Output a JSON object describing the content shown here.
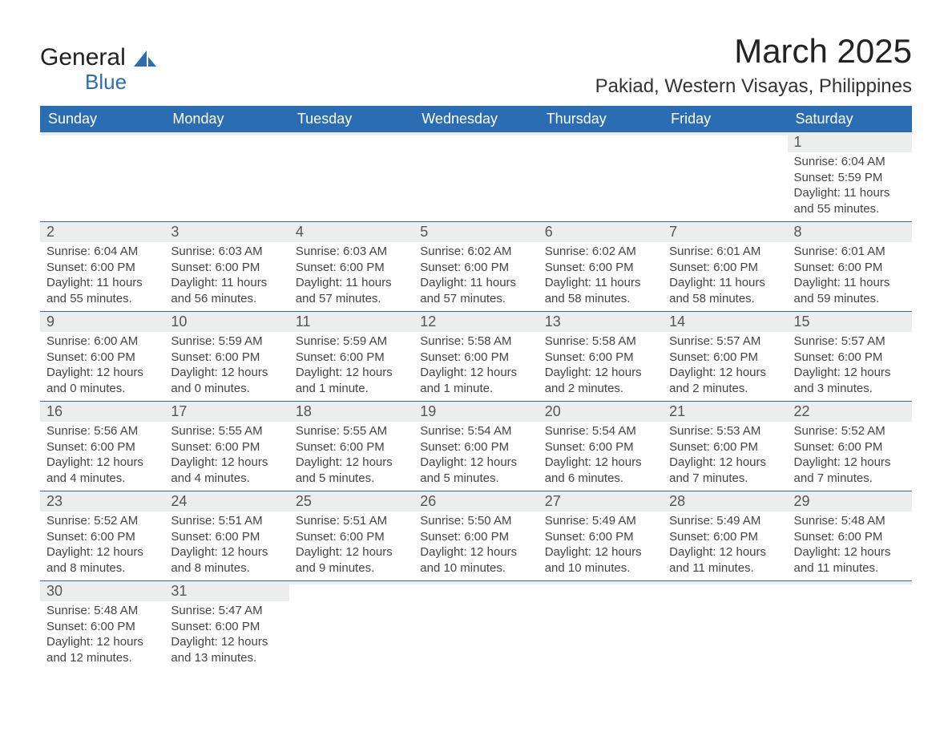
{
  "logo": {
    "text1": "General",
    "text2": "Blue",
    "icon_color": "#2a6db3"
  },
  "header": {
    "month_title": "March 2025",
    "location": "Pakiad, Western Visayas, Philippines"
  },
  "columns": [
    "Sunday",
    "Monday",
    "Tuesday",
    "Wednesday",
    "Thursday",
    "Friday",
    "Saturday"
  ],
  "colors": {
    "header_bg": "#2a6db3",
    "header_fg": "#ffffff",
    "daynum_bg": "#eceded",
    "text": "#444444",
    "rule": "#2a6db3"
  },
  "weeks": [
    [
      {
        "n": "",
        "lines": []
      },
      {
        "n": "",
        "lines": []
      },
      {
        "n": "",
        "lines": []
      },
      {
        "n": "",
        "lines": []
      },
      {
        "n": "",
        "lines": []
      },
      {
        "n": "",
        "lines": []
      },
      {
        "n": "1",
        "lines": [
          "Sunrise: 6:04 AM",
          "Sunset: 5:59 PM",
          "Daylight: 11 hours and 55 minutes."
        ]
      }
    ],
    [
      {
        "n": "2",
        "lines": [
          "Sunrise: 6:04 AM",
          "Sunset: 6:00 PM",
          "Daylight: 11 hours and 55 minutes."
        ]
      },
      {
        "n": "3",
        "lines": [
          "Sunrise: 6:03 AM",
          "Sunset: 6:00 PM",
          "Daylight: 11 hours and 56 minutes."
        ]
      },
      {
        "n": "4",
        "lines": [
          "Sunrise: 6:03 AM",
          "Sunset: 6:00 PM",
          "Daylight: 11 hours and 57 minutes."
        ]
      },
      {
        "n": "5",
        "lines": [
          "Sunrise: 6:02 AM",
          "Sunset: 6:00 PM",
          "Daylight: 11 hours and 57 minutes."
        ]
      },
      {
        "n": "6",
        "lines": [
          "Sunrise: 6:02 AM",
          "Sunset: 6:00 PM",
          "Daylight: 11 hours and 58 minutes."
        ]
      },
      {
        "n": "7",
        "lines": [
          "Sunrise: 6:01 AM",
          "Sunset: 6:00 PM",
          "Daylight: 11 hours and 58 minutes."
        ]
      },
      {
        "n": "8",
        "lines": [
          "Sunrise: 6:01 AM",
          "Sunset: 6:00 PM",
          "Daylight: 11 hours and 59 minutes."
        ]
      }
    ],
    [
      {
        "n": "9",
        "lines": [
          "Sunrise: 6:00 AM",
          "Sunset: 6:00 PM",
          "Daylight: 12 hours and 0 minutes."
        ]
      },
      {
        "n": "10",
        "lines": [
          "Sunrise: 5:59 AM",
          "Sunset: 6:00 PM",
          "Daylight: 12 hours and 0 minutes."
        ]
      },
      {
        "n": "11",
        "lines": [
          "Sunrise: 5:59 AM",
          "Sunset: 6:00 PM",
          "Daylight: 12 hours and 1 minute."
        ]
      },
      {
        "n": "12",
        "lines": [
          "Sunrise: 5:58 AM",
          "Sunset: 6:00 PM",
          "Daylight: 12 hours and 1 minute."
        ]
      },
      {
        "n": "13",
        "lines": [
          "Sunrise: 5:58 AM",
          "Sunset: 6:00 PM",
          "Daylight: 12 hours and 2 minutes."
        ]
      },
      {
        "n": "14",
        "lines": [
          "Sunrise: 5:57 AM",
          "Sunset: 6:00 PM",
          "Daylight: 12 hours and 2 minutes."
        ]
      },
      {
        "n": "15",
        "lines": [
          "Sunrise: 5:57 AM",
          "Sunset: 6:00 PM",
          "Daylight: 12 hours and 3 minutes."
        ]
      }
    ],
    [
      {
        "n": "16",
        "lines": [
          "Sunrise: 5:56 AM",
          "Sunset: 6:00 PM",
          "Daylight: 12 hours and 4 minutes."
        ]
      },
      {
        "n": "17",
        "lines": [
          "Sunrise: 5:55 AM",
          "Sunset: 6:00 PM",
          "Daylight: 12 hours and 4 minutes."
        ]
      },
      {
        "n": "18",
        "lines": [
          "Sunrise: 5:55 AM",
          "Sunset: 6:00 PM",
          "Daylight: 12 hours and 5 minutes."
        ]
      },
      {
        "n": "19",
        "lines": [
          "Sunrise: 5:54 AM",
          "Sunset: 6:00 PM",
          "Daylight: 12 hours and 5 minutes."
        ]
      },
      {
        "n": "20",
        "lines": [
          "Sunrise: 5:54 AM",
          "Sunset: 6:00 PM",
          "Daylight: 12 hours and 6 minutes."
        ]
      },
      {
        "n": "21",
        "lines": [
          "Sunrise: 5:53 AM",
          "Sunset: 6:00 PM",
          "Daylight: 12 hours and 7 minutes."
        ]
      },
      {
        "n": "22",
        "lines": [
          "Sunrise: 5:52 AM",
          "Sunset: 6:00 PM",
          "Daylight: 12 hours and 7 minutes."
        ]
      }
    ],
    [
      {
        "n": "23",
        "lines": [
          "Sunrise: 5:52 AM",
          "Sunset: 6:00 PM",
          "Daylight: 12 hours and 8 minutes."
        ]
      },
      {
        "n": "24",
        "lines": [
          "Sunrise: 5:51 AM",
          "Sunset: 6:00 PM",
          "Daylight: 12 hours and 8 minutes."
        ]
      },
      {
        "n": "25",
        "lines": [
          "Sunrise: 5:51 AM",
          "Sunset: 6:00 PM",
          "Daylight: 12 hours and 9 minutes."
        ]
      },
      {
        "n": "26",
        "lines": [
          "Sunrise: 5:50 AM",
          "Sunset: 6:00 PM",
          "Daylight: 12 hours and 10 minutes."
        ]
      },
      {
        "n": "27",
        "lines": [
          "Sunrise: 5:49 AM",
          "Sunset: 6:00 PM",
          "Daylight: 12 hours and 10 minutes."
        ]
      },
      {
        "n": "28",
        "lines": [
          "Sunrise: 5:49 AM",
          "Sunset: 6:00 PM",
          "Daylight: 12 hours and 11 minutes."
        ]
      },
      {
        "n": "29",
        "lines": [
          "Sunrise: 5:48 AM",
          "Sunset: 6:00 PM",
          "Daylight: 12 hours and 11 minutes."
        ]
      }
    ],
    [
      {
        "n": "30",
        "lines": [
          "Sunrise: 5:48 AM",
          "Sunset: 6:00 PM",
          "Daylight: 12 hours and 12 minutes."
        ]
      },
      {
        "n": "31",
        "lines": [
          "Sunrise: 5:47 AM",
          "Sunset: 6:00 PM",
          "Daylight: 12 hours and 13 minutes."
        ]
      },
      {
        "n": "",
        "lines": []
      },
      {
        "n": "",
        "lines": []
      },
      {
        "n": "",
        "lines": []
      },
      {
        "n": "",
        "lines": []
      },
      {
        "n": "",
        "lines": []
      }
    ]
  ]
}
